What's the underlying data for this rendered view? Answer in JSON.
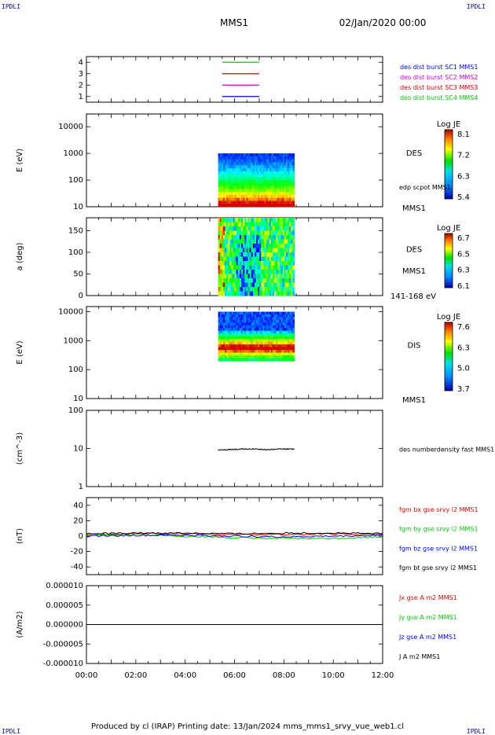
{
  "header": {
    "corner_left": "IPDLI",
    "corner_right": "IPDLI",
    "mission": "MMS1",
    "date": "02/Jan/2020 00:00"
  },
  "footer": {
    "text": "Produced by cl (IRAP)   Printing date: 13/Jan/2024   mms_mms1_srvy_vue_web1.cl",
    "corner_left": "IPDLI",
    "corner_right": "IPDLI"
  },
  "colors": {
    "c1": "#0000ff",
    "c2": "#cc00cc",
    "c3": "#dd0000",
    "c4": "#00cc00",
    "black": "#000000"
  },
  "chart_data": [
    {
      "type": "line",
      "id": "availability",
      "ylim": [
        0.5,
        4.5
      ],
      "yticks": [
        "1",
        "2",
        "3",
        "4"
      ],
      "ytick_values": [
        1,
        2,
        3,
        4
      ],
      "series": [
        {
          "name": "des dist burst SC1 MMS1",
          "color": "#0000ff",
          "level": 1,
          "x": [
            "05:30",
            "07:00"
          ]
        },
        {
          "name": "des dist burst SC2 MMS2",
          "color": "#cc00cc",
          "level": 2,
          "x": [
            "05:30",
            "07:00"
          ]
        },
        {
          "name": "des dist burst SC3 MMS3",
          "color": "#dd0000",
          "level": 3,
          "x": [
            "05:30",
            "07:00"
          ]
        },
        {
          "name": "des dist burst SC4 MMS4",
          "color": "#00cc00",
          "level": 4,
          "x": [
            "05:30",
            "07:00"
          ]
        }
      ]
    },
    {
      "type": "heatmap",
      "id": "des-energy",
      "ylabel": "E (eV)",
      "scale": "log",
      "ylim": [
        10,
        30000
      ],
      "yticks": [
        "10",
        "100",
        "1000",
        "10000"
      ],
      "ytick_values": [
        10,
        100,
        1000,
        10000
      ],
      "x_range": [
        "05:20",
        "08:25"
      ],
      "y_range": [
        10,
        1000
      ],
      "label": "DES",
      "sublabel": "MMS1",
      "extra_label": "edp scpot MMS1",
      "colorbar": {
        "title": "Log JE",
        "ticks": [
          "8.1",
          "7.2",
          "6.3",
          "5.4"
        ]
      }
    },
    {
      "type": "heatmap",
      "id": "des-pitch",
      "ylabel": "a (deg)",
      "ylim": [
        0,
        180
      ],
      "yticks": [
        "0",
        "50",
        "100",
        "150"
      ],
      "ytick_values": [
        0,
        50,
        100,
        150
      ],
      "x_range": [
        "05:20",
        "08:25"
      ],
      "label": "DES",
      "sublabel": "MMS1",
      "extra_label": "141-168 eV",
      "colorbar": {
        "title": "Log JE",
        "ticks": [
          "6.7",
          "6.5",
          "6.3",
          "6.1"
        ]
      }
    },
    {
      "type": "heatmap",
      "id": "dis-energy",
      "ylabel": "E (eV)",
      "scale": "log",
      "ylim": [
        10,
        15000
      ],
      "yticks": [
        "10",
        "100",
        "1000",
        "10000"
      ],
      "ytick_values": [
        10,
        100,
        1000,
        10000
      ],
      "x_range": [
        "05:20",
        "08:25"
      ],
      "y_range": [
        200,
        10000
      ],
      "label": "DIS",
      "sublabel": "MMS1",
      "colorbar": {
        "title": "Log JE",
        "ticks": [
          "7.6",
          "6.3",
          "5.0",
          "3.7"
        ]
      }
    },
    {
      "type": "line",
      "id": "density",
      "ylabel": "(cm^-3)",
      "scale": "log",
      "ylim": [
        1,
        100
      ],
      "yticks": [
        "1",
        "10",
        "100"
      ],
      "ytick_values": [
        1,
        10,
        100
      ],
      "series": [
        {
          "name": "des numberdensity fast MMS1",
          "color": "#000000",
          "x": [
            "05:20",
            "06:00",
            "06:40",
            "07:20",
            "08:00",
            "08:25"
          ],
          "y": [
            9.0,
            9.5,
            9.8,
            9.3,
            9.7,
            9.6
          ]
        }
      ]
    },
    {
      "type": "line",
      "id": "magnetic-field",
      "ylabel": "(nT)",
      "ylim": [
        -50,
        50
      ],
      "yticks": [
        "-40",
        "-20",
        "0",
        "20",
        "40"
      ],
      "ytick_values": [
        -40,
        -20,
        0,
        20,
        40
      ],
      "series": [
        {
          "name": "fgm bx gse srvy l2 MMS1",
          "color": "#dd0000",
          "x": [
            "00:00",
            "02:00",
            "04:00",
            "06:00",
            "08:00",
            "10:00",
            "12:00"
          ],
          "y": [
            2,
            3,
            3,
            2,
            2,
            3,
            2
          ]
        },
        {
          "name": "fgm by gse srvy l2 MMS1",
          "color": "#00cc00",
          "x": [
            "00:00",
            "02:00",
            "04:00",
            "06:00",
            "08:00",
            "10:00",
            "12:00"
          ],
          "y": [
            1,
            2,
            0,
            -2,
            -3,
            -3,
            -1
          ]
        },
        {
          "name": "fgm bz gse srvy l2 MMS1",
          "color": "#0000ff",
          "x": [
            "00:00",
            "02:00",
            "04:00",
            "06:00",
            "08:00",
            "10:00",
            "12:00"
          ],
          "y": [
            0,
            1,
            1,
            0,
            -1,
            0,
            1
          ]
        },
        {
          "name": "fgm bt gse srvy l2 MMS1",
          "color": "#000000",
          "x": [
            "00:00",
            "02:00",
            "04:00",
            "06:00",
            "08:00",
            "10:00",
            "12:00"
          ],
          "y": [
            3,
            4,
            4,
            3,
            4,
            4,
            3
          ]
        }
      ]
    },
    {
      "type": "line",
      "id": "current-density",
      "ylabel": "(A/m2)",
      "ylim": [
        -1e-05,
        1e-05
      ],
      "yticks": [
        "-0.000010",
        "-0.000005",
        "0.000000",
        "0.000005",
        "0.000010"
      ],
      "ytick_values": [
        -1e-05,
        -5e-06,
        0,
        5e-06,
        1e-05
      ],
      "xticks": [
        "00:00",
        "02:00",
        "04:00",
        "06:00",
        "08:00",
        "10:00",
        "12:00"
      ],
      "series": [
        {
          "name": "Jx gse A m2 MMS1",
          "color": "#dd0000",
          "x": [
            "00:00",
            "12:00"
          ],
          "y": [
            0,
            0
          ]
        },
        {
          "name": "Jy gse A m2 MMS1",
          "color": "#00cc00",
          "x": [
            "00:00",
            "12:00"
          ],
          "y": [
            0,
            0
          ]
        },
        {
          "name": "Jz gse A m2 MMS1",
          "color": "#0000ff",
          "x": [
            "00:00",
            "12:00"
          ],
          "y": [
            0,
            0
          ]
        },
        {
          "name": "J A m2 MMS1",
          "color": "#000000",
          "x": [
            "00:00",
            "12:00"
          ],
          "y": [
            0,
            0
          ]
        }
      ]
    }
  ]
}
